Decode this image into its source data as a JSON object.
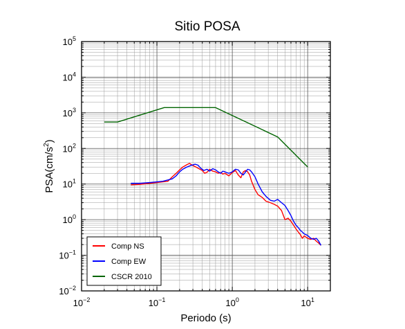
{
  "chart_data": {
    "type": "line",
    "title": "Sitio POSA",
    "xlabel": "Periodo (s)",
    "ylabel": {
      "base": "PSA(cm/s",
      "sup": "2",
      "close": ")"
    },
    "x_scale": "log",
    "y_scale": "log",
    "xlim": [
      0.01,
      20
    ],
    "ylim": [
      0.01,
      100000
    ],
    "grid": true,
    "legend_position": "bottom-left",
    "x_ticks": [
      {
        "base": "10",
        "exp": "−2"
      },
      {
        "base": "10",
        "exp": "−1"
      },
      {
        "base": "10",
        "exp": "0"
      },
      {
        "base": "10",
        "exp": "1"
      }
    ],
    "y_ticks": [
      {
        "base": "10",
        "exp": "−2"
      },
      {
        "base": "10",
        "exp": "−1"
      },
      {
        "base": "10",
        "exp": "0"
      },
      {
        "base": "10",
        "exp": "1"
      },
      {
        "base": "10",
        "exp": "2"
      },
      {
        "base": "10",
        "exp": "3"
      },
      {
        "base": "10",
        "exp": "4"
      },
      {
        "base": "10",
        "exp": "5"
      }
    ],
    "series": [
      {
        "name": "Comp NS",
        "color": "#ff0000",
        "points": [
          [
            0.045,
            9.5
          ],
          [
            0.06,
            9.8
          ],
          [
            0.08,
            10.5
          ],
          [
            0.1,
            11
          ],
          [
            0.12,
            11.5
          ],
          [
            0.14,
            12
          ],
          [
            0.16,
            16
          ],
          [
            0.18,
            20
          ],
          [
            0.2,
            25
          ],
          [
            0.22,
            30
          ],
          [
            0.25,
            35
          ],
          [
            0.27,
            38
          ],
          [
            0.3,
            33
          ],
          [
            0.33,
            30
          ],
          [
            0.36,
            27
          ],
          [
            0.4,
            24
          ],
          [
            0.43,
            20
          ],
          [
            0.47,
            22
          ],
          [
            0.5,
            26
          ],
          [
            0.55,
            23
          ],
          [
            0.6,
            22
          ],
          [
            0.65,
            20
          ],
          [
            0.7,
            21
          ],
          [
            0.75,
            19
          ],
          [
            0.8,
            20
          ],
          [
            0.9,
            17
          ],
          [
            1.0,
            21
          ],
          [
            1.1,
            24
          ],
          [
            1.2,
            18
          ],
          [
            1.3,
            15
          ],
          [
            1.4,
            22
          ],
          [
            1.5,
            24
          ],
          [
            1.6,
            22
          ],
          [
            1.7,
            18
          ],
          [
            1.8,
            12
          ],
          [
            2.0,
            7
          ],
          [
            2.2,
            5
          ],
          [
            2.5,
            4.2
          ],
          [
            2.8,
            3.3
          ],
          [
            3.2,
            3.0
          ],
          [
            3.6,
            2.7
          ],
          [
            4.0,
            2.4
          ],
          [
            4.5,
            1.8
          ],
          [
            5.0,
            1.0
          ],
          [
            5.5,
            1.1
          ],
          [
            6.0,
            0.9
          ],
          [
            6.5,
            0.7
          ],
          [
            7.0,
            0.55
          ],
          [
            7.5,
            0.45
          ],
          [
            8.0,
            0.38
          ],
          [
            8.5,
            0.3
          ],
          [
            9.0,
            0.35
          ],
          [
            10,
            0.3
          ],
          [
            11,
            0.28
          ],
          [
            12,
            0.3
          ],
          [
            13,
            0.25
          ],
          [
            14,
            0.22
          ],
          [
            15,
            0.19
          ]
        ]
      },
      {
        "name": "Comp EW",
        "color": "#0000ff",
        "points": [
          [
            0.045,
            10.5
          ],
          [
            0.06,
            10.5
          ],
          [
            0.08,
            11
          ],
          [
            0.1,
            11.5
          ],
          [
            0.12,
            12
          ],
          [
            0.14,
            13
          ],
          [
            0.16,
            14
          ],
          [
            0.18,
            17
          ],
          [
            0.2,
            22
          ],
          [
            0.22,
            26
          ],
          [
            0.25,
            30
          ],
          [
            0.28,
            33
          ],
          [
            0.32,
            36
          ],
          [
            0.35,
            34
          ],
          [
            0.38,
            28
          ],
          [
            0.42,
            24
          ],
          [
            0.46,
            26
          ],
          [
            0.5,
            23
          ],
          [
            0.55,
            27
          ],
          [
            0.6,
            25
          ],
          [
            0.65,
            22
          ],
          [
            0.7,
            20
          ],
          [
            0.75,
            23
          ],
          [
            0.8,
            22
          ],
          [
            0.9,
            20
          ],
          [
            1.0,
            22
          ],
          [
            1.1,
            26
          ],
          [
            1.2,
            25
          ],
          [
            1.3,
            20
          ],
          [
            1.4,
            18
          ],
          [
            1.5,
            22
          ],
          [
            1.6,
            26
          ],
          [
            1.7,
            25
          ],
          [
            1.8,
            22
          ],
          [
            2.0,
            16
          ],
          [
            2.2,
            10
          ],
          [
            2.5,
            6
          ],
          [
            2.8,
            4.5
          ],
          [
            3.2,
            3.5
          ],
          [
            3.6,
            3.3
          ],
          [
            4.0,
            3.7
          ],
          [
            4.5,
            3.0
          ],
          [
            5.0,
            2.5
          ],
          [
            5.5,
            1.8
          ],
          [
            6.0,
            1.3
          ],
          [
            6.5,
            0.9
          ],
          [
            7.0,
            0.7
          ],
          [
            7.5,
            0.6
          ],
          [
            8.0,
            0.5
          ],
          [
            8.5,
            0.45
          ],
          [
            9.0,
            0.4
          ],
          [
            10,
            0.36
          ],
          [
            11,
            0.3
          ],
          [
            12,
            0.28
          ],
          [
            13,
            0.3
          ],
          [
            14,
            0.25
          ],
          [
            15,
            0.19
          ]
        ]
      },
      {
        "name": "CSCR 2010",
        "color": "#006400",
        "points": [
          [
            0.02,
            550
          ],
          [
            0.03,
            550
          ],
          [
            0.125,
            1400
          ],
          [
            0.6,
            1400
          ],
          [
            4.0,
            210
          ],
          [
            10,
            30
          ]
        ]
      }
    ]
  }
}
